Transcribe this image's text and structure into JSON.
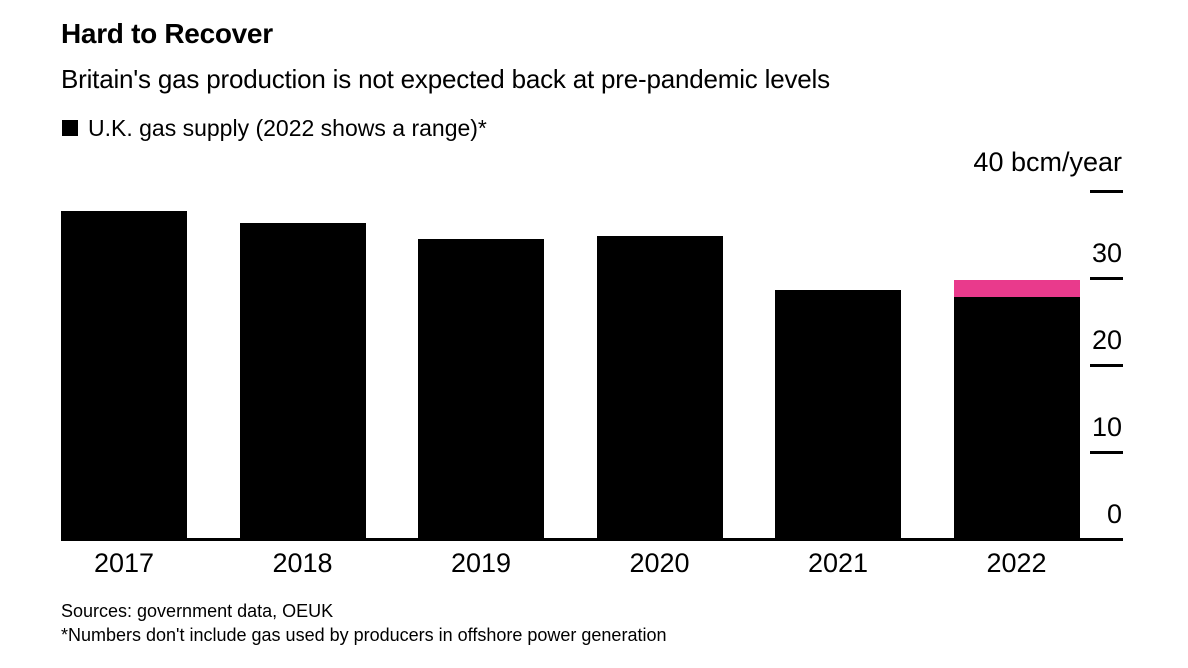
{
  "header": {
    "title": "Hard to Recover",
    "subtitle": "Britain's gas production is not expected back at pre-pandemic levels"
  },
  "legend": {
    "label": "U.K. gas supply (2022 shows a range)*",
    "swatch_color": "#000000"
  },
  "axis": {
    "unit_label": "40 bcm/year",
    "tick_line_values": [
      40,
      30,
      20,
      10
    ],
    "tick_labels": [
      {
        "value": 30,
        "label": "30"
      },
      {
        "value": 20,
        "label": "20"
      },
      {
        "value": 10,
        "label": "10"
      },
      {
        "value": 0,
        "label": "0"
      }
    ]
  },
  "chart_data": {
    "type": "bar",
    "title": "Hard to Recover",
    "subtitle": "Britain's gas production is not expected back at pre-pandemic levels",
    "categories": [
      "2017",
      "2018",
      "2019",
      "2020",
      "2021",
      "2022"
    ],
    "series": [
      {
        "name": "U.K. gas supply",
        "color": "#000000",
        "values": [
          37.8,
          36.4,
          34.6,
          34.9,
          28.7,
          27.9
        ]
      }
    ],
    "range_overlay": {
      "category": "2022",
      "from": 27.9,
      "to": 29.9,
      "color": "#E93A8C",
      "note": "2022 shows a range"
    },
    "ylabel": "bcm/year",
    "ylim": [
      0,
      40
    ],
    "yticks": [
      0,
      10,
      20,
      30,
      40
    ],
    "grid": false,
    "legend_position": "top-left",
    "bar_color": "#000000"
  },
  "footer": {
    "sources": "Sources: government data, OEUK",
    "footnote": "*Numbers don't include gas used by producers in offshore power generation"
  },
  "colors": {
    "bar": "#000000",
    "range": "#E93A8C",
    "text": "#000000",
    "background": "#FFFFFF"
  }
}
